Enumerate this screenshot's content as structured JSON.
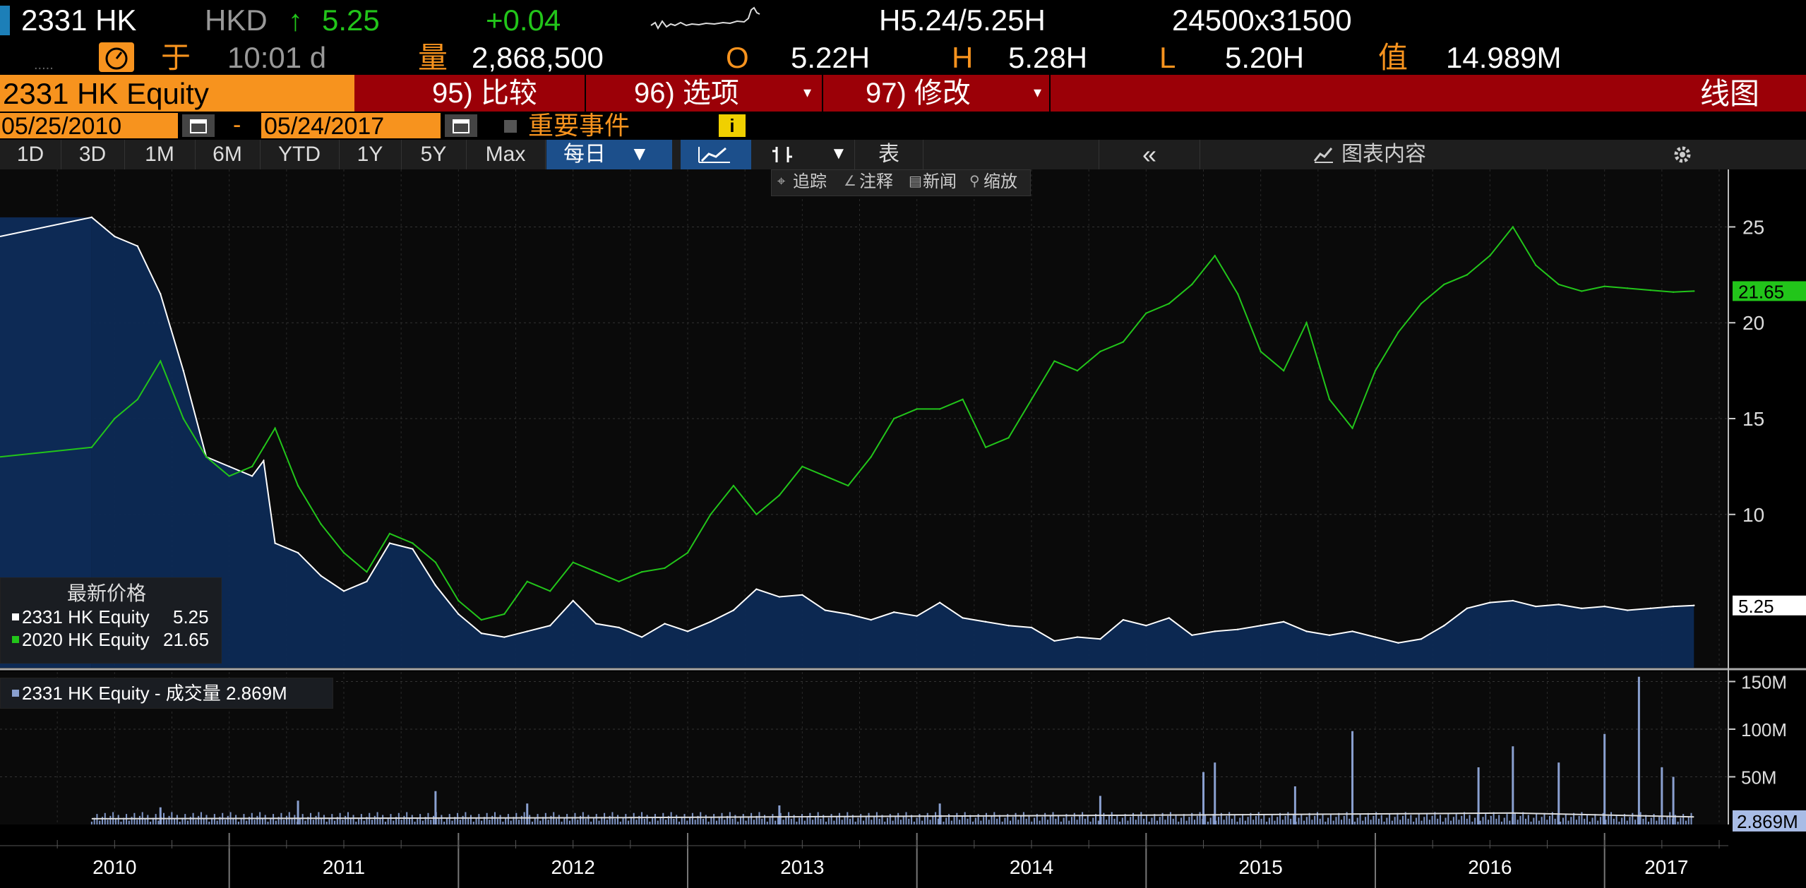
{
  "header": {
    "ticker": "2331 HK",
    "currency": "HKD",
    "arrow": "↑",
    "last": "5.25",
    "change": "+0.04",
    "bid_ask": "H5.24/5.25H",
    "bid_ask_size": "24500x31500",
    "at_label": "于",
    "time": "10:01 d",
    "volume_label": "量",
    "volume": "2,868,500",
    "open_label": "O",
    "open": "5.22H",
    "high_label": "H",
    "high": "5.28H",
    "low_label": "L",
    "low": "5.20H",
    "value_label": "值",
    "value": "14.989M"
  },
  "menu": {
    "security": "2331 HK Equity",
    "compare": "95) 比较",
    "options": "96) 选项",
    "modify": "97) 修改",
    "chart_type": "线图"
  },
  "date_range": {
    "start": "05/25/2010",
    "dash": "-",
    "end": "05/24/2017",
    "events": "重要事件",
    "info": "i"
  },
  "toolbar": {
    "periods": [
      "1D",
      "3D",
      "1M",
      "6M",
      "YTD",
      "1Y",
      "5Y",
      "Max"
    ],
    "frequency": "每日",
    "table": "表",
    "collapse": "«",
    "chart_content": "图表内容"
  },
  "tools": {
    "track": "追踪",
    "annotate": "注释",
    "news": "新闻",
    "zoom": "缩放"
  },
  "colors": {
    "orange": "#f7931e",
    "green": "#22c51a",
    "area": "#0d2a55",
    "menu_red": "#9b0007",
    "active_tab": "#1c4f8b"
  },
  "chart_data": [
    {
      "type": "line",
      "x_years": [
        "2010",
        "2011",
        "2012",
        "2013",
        "2014",
        "2015",
        "2016",
        "2017"
      ],
      "ylim": [
        2,
        28
      ],
      "y_ticks": [
        10,
        15,
        20,
        25
      ],
      "legend": {
        "title": "最新价格",
        "series": [
          {
            "name": "2331 HK Equity",
            "value": "5.25",
            "color": "#ffffff"
          },
          {
            "name": "2020 HK Equity",
            "value": "21.65",
            "color": "#22c51a"
          }
        ]
      },
      "series": [
        {
          "name": "2331 HK Equity",
          "last_label": "5.25",
          "x": [
            2010.4,
            2010.5,
            2010.6,
            2010.7,
            2010.8,
            2010.9,
            2011.0,
            2011.1,
            2011.15,
            2011.2,
            2011.3,
            2011.4,
            2011.5,
            2011.6,
            2011.7,
            2011.8,
            2011.9,
            2012.0,
            2012.1,
            2012.2,
            2012.3,
            2012.4,
            2012.5,
            2012.6,
            2012.7,
            2012.8,
            2012.9,
            2013.0,
            2013.1,
            2013.2,
            2013.3,
            2013.4,
            2013.5,
            2013.6,
            2013.7,
            2013.8,
            2013.9,
            2014.0,
            2014.1,
            2014.2,
            2014.3,
            2014.4,
            2014.5,
            2014.6,
            2014.7,
            2014.8,
            2014.9,
            2015.0,
            2015.1,
            2015.2,
            2015.3,
            2015.4,
            2015.5,
            2015.6,
            2015.7,
            2015.8,
            2015.9,
            2016.0,
            2016.1,
            2016.2,
            2016.3,
            2016.4,
            2016.5,
            2016.6,
            2016.7,
            2016.8,
            2016.9,
            2017.0,
            2017.1,
            2017.2,
            2017.3,
            2017.39
          ],
          "y": [
            25.5,
            24.5,
            24.0,
            21.5,
            17.5,
            13.0,
            12.5,
            12.0,
            12.8,
            8.5,
            8.0,
            6.8,
            6.0,
            6.5,
            8.5,
            8.2,
            6.3,
            4.8,
            3.8,
            3.6,
            3.9,
            4.2,
            5.5,
            4.3,
            4.1,
            3.6,
            4.3,
            3.9,
            4.4,
            5.0,
            6.1,
            5.7,
            5.8,
            5.0,
            4.8,
            4.5,
            4.9,
            4.7,
            5.4,
            4.6,
            4.4,
            4.2,
            4.1,
            3.4,
            3.6,
            3.5,
            4.5,
            4.2,
            4.6,
            3.7,
            3.9,
            4.0,
            4.2,
            4.4,
            3.9,
            3.7,
            3.9,
            3.6,
            3.3,
            3.5,
            4.2,
            5.1,
            5.4,
            5.5,
            5.2,
            5.3,
            5.1,
            5.2,
            5.0,
            5.1,
            5.2,
            5.25
          ]
        },
        {
          "name": "2020 HK Equity",
          "last_label": "21.65",
          "x": [
            2010.4,
            2010.5,
            2010.6,
            2010.7,
            2010.8,
            2010.9,
            2011.0,
            2011.1,
            2011.15,
            2011.2,
            2011.3,
            2011.4,
            2011.5,
            2011.6,
            2011.7,
            2011.8,
            2011.9,
            2012.0,
            2012.1,
            2012.2,
            2012.3,
            2012.4,
            2012.5,
            2012.6,
            2012.7,
            2012.8,
            2012.9,
            2013.0,
            2013.1,
            2013.2,
            2013.3,
            2013.4,
            2013.5,
            2013.6,
            2013.7,
            2013.8,
            2013.9,
            2014.0,
            2014.1,
            2014.2,
            2014.3,
            2014.4,
            2014.5,
            2014.6,
            2014.7,
            2014.8,
            2014.9,
            2015.0,
            2015.1,
            2015.2,
            2015.3,
            2015.4,
            2015.5,
            2015.6,
            2015.7,
            2015.8,
            2015.9,
            2016.0,
            2016.1,
            2016.2,
            2016.3,
            2016.4,
            2016.5,
            2016.6,
            2016.7,
            2016.8,
            2016.9,
            2017.0,
            2017.1,
            2017.2,
            2017.3,
            2017.39
          ],
          "y": [
            13.5,
            15.0,
            16.0,
            18.0,
            15.0,
            13.0,
            12.0,
            12.5,
            13.5,
            14.5,
            11.5,
            9.5,
            8.0,
            7.0,
            9.0,
            8.5,
            7.5,
            5.5,
            4.5,
            4.8,
            6.5,
            6.0,
            7.5,
            7.0,
            6.5,
            7.0,
            7.2,
            8.0,
            10.0,
            11.5,
            10.0,
            11.0,
            12.5,
            12.0,
            11.5,
            13.0,
            15.0,
            15.5,
            15.5,
            16.0,
            13.5,
            14.0,
            16.0,
            18.0,
            17.5,
            18.5,
            19.0,
            20.5,
            21.0,
            22.0,
            23.5,
            21.5,
            18.5,
            17.5,
            20.0,
            16.0,
            14.5,
            17.5,
            19.5,
            21.0,
            22.0,
            22.5,
            23.5,
            25.0,
            23.0,
            22.0,
            21.65,
            21.9,
            21.8,
            21.7,
            21.6,
            21.65
          ]
        }
      ]
    },
    {
      "type": "bar",
      "title": "2331 HK Equity - 成交量 2.869M",
      "ylim": [
        0,
        160
      ],
      "y_ticks": [
        "50M",
        "100M",
        "150M"
      ],
      "last_label": "2.869M",
      "x": [
        2010.7,
        2011.3,
        2011.9,
        2012.3,
        2013.4,
        2014.1,
        2014.8,
        2015.25,
        2015.3,
        2015.65,
        2015.9,
        2016.45,
        2016.6,
        2016.8,
        2017.0,
        2017.15,
        2017.25,
        2017.3
      ],
      "values": [
        18,
        25,
        35,
        22,
        20,
        22,
        30,
        55,
        65,
        40,
        98,
        60,
        82,
        65,
        95,
        155,
        60,
        50
      ]
    }
  ]
}
